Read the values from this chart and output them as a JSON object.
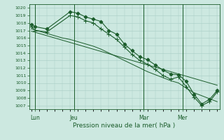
{
  "title": "Pression niveau de la mer( hPa )",
  "background_color": "#cce8e0",
  "grid_color": "#a8ccc4",
  "line_color": "#1a5c2a",
  "ylim": [
    1006.5,
    1020.5
  ],
  "yticks": [
    1007,
    1008,
    1009,
    1010,
    1011,
    1012,
    1013,
    1014,
    1015,
    1016,
    1017,
    1018,
    1019,
    1020
  ],
  "xlim": [
    -0.3,
    24.3
  ],
  "xtick_labels": [
    "Lun",
    "Jeu",
    "Mar",
    "Mer"
  ],
  "xtick_positions": [
    0.5,
    5.5,
    14.5,
    19.5
  ],
  "vline_positions": [
    0.5,
    5.5,
    14.5,
    19.5
  ],
  "lines": [
    {
      "x": [
        0,
        0.5,
        2,
        5,
        6,
        7,
        8,
        9,
        10,
        11,
        12,
        13,
        14,
        15,
        16,
        17,
        18,
        19,
        20,
        21,
        22,
        23,
        24
      ],
      "y": [
        1017.8,
        1017.5,
        1017.2,
        1019.5,
        1019.3,
        1018.8,
        1018.5,
        1018.2,
        1017.0,
        1016.5,
        1015.2,
        1014.3,
        1013.5,
        1013.1,
        1012.4,
        1011.7,
        1011.2,
        1011.1,
        1010.2,
        1008.5,
        1007.2,
        1007.8,
        1009.0
      ],
      "marker": "D",
      "markersize": 2.5,
      "linewidth": 0.8
    },
    {
      "x": [
        0,
        0.5,
        2,
        5,
        6,
        7,
        8,
        9,
        10,
        11,
        12,
        13,
        14,
        15,
        16,
        17,
        18,
        19,
        20,
        21,
        22,
        23,
        24
      ],
      "y": [
        1017.5,
        1017.0,
        1016.8,
        1019.0,
        1018.8,
        1018.3,
        1018.0,
        1017.2,
        1016.5,
        1015.8,
        1014.8,
        1013.8,
        1013.0,
        1012.5,
        1011.8,
        1011.0,
        1010.5,
        1010.8,
        1009.5,
        1008.1,
        1007.0,
        1007.5,
        1008.8
      ],
      "marker": "+",
      "markersize": 4.0,
      "linewidth": 0.8
    },
    {
      "x": [
        0,
        1,
        2,
        3,
        4,
        5,
        6,
        7,
        8,
        9,
        10,
        11,
        12,
        13,
        14,
        15,
        16,
        17,
        18,
        19,
        20,
        21,
        22,
        23,
        24
      ],
      "y": [
        1017.2,
        1016.9,
        1016.6,
        1016.3,
        1016.0,
        1015.8,
        1015.5,
        1015.2,
        1014.9,
        1014.5,
        1014.0,
        1013.5,
        1013.0,
        1012.5,
        1012.0,
        1011.5,
        1011.1,
        1010.7,
        1010.3,
        1010.0,
        1009.3,
        1008.7,
        1008.3,
        1007.9,
        1007.5
      ],
      "marker": null,
      "markersize": 0,
      "linewidth": 0.7
    },
    {
      "x": [
        0,
        1,
        2,
        3,
        4,
        5,
        6,
        7,
        8,
        9,
        10,
        11,
        12,
        13,
        14,
        15,
        16,
        17,
        18,
        19,
        20,
        21,
        22,
        23,
        24
      ],
      "y": [
        1016.9,
        1016.6,
        1016.3,
        1016.0,
        1015.7,
        1015.4,
        1015.1,
        1014.8,
        1014.5,
        1014.2,
        1013.9,
        1013.6,
        1013.3,
        1013.0,
        1012.7,
        1012.4,
        1012.1,
        1011.8,
        1011.5,
        1011.2,
        1010.9,
        1010.6,
        1010.3,
        1010.0,
        1009.7
      ],
      "marker": null,
      "markersize": 0,
      "linewidth": 0.7
    }
  ]
}
